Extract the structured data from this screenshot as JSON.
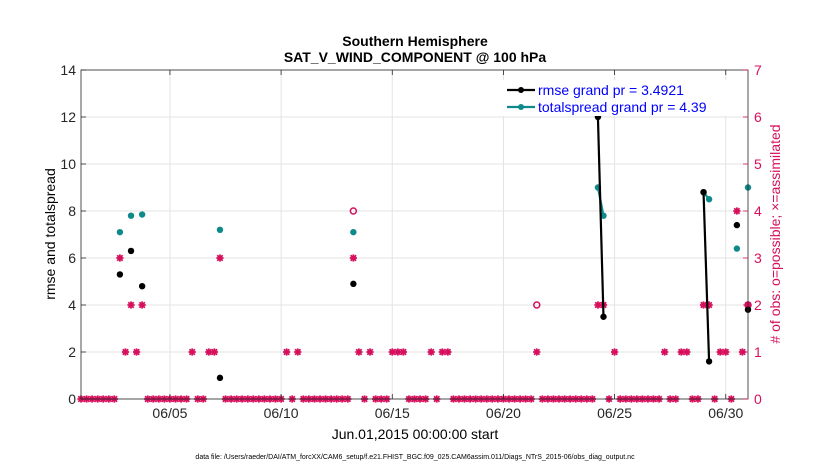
{
  "chart_data": {
    "type": "line",
    "title_line1": "Southern Hemisphere",
    "title_line2": "SAT_V_WIND_COMPONENT @ 100 hPa",
    "xlabel": "Jun.01,2015 00:00:00 start",
    "ylabel": "rmse and totalspread",
    "ylabel_right": "# of obs: o=possible; ×=assimilated",
    "footnote": "data file: /Users/raeder/DAI/ATM_forcXX/CAM6_setup/f.e21.FHIST_BGC.f09_025.CAM6assim.011/Diags_NTrS_2015-06/obs_diag_output.nc",
    "xlim": [
      1,
      31
    ],
    "ylim": [
      0,
      14
    ],
    "ylim_right": [
      0,
      7
    ],
    "x_tick_labels": [
      {
        "x": 5,
        "label": "06/05"
      },
      {
        "x": 10,
        "label": "06/10"
      },
      {
        "x": 15,
        "label": "06/15"
      },
      {
        "x": 20,
        "label": "06/20"
      },
      {
        "x": 25,
        "label": "06/25"
      },
      {
        "x": 30,
        "label": "06/30"
      }
    ],
    "y_ticks": [
      0,
      2,
      4,
      6,
      8,
      10,
      12,
      14
    ],
    "y_ticks_right": [
      0,
      1,
      2,
      3,
      4,
      5,
      6,
      7
    ],
    "colors": {
      "rmse": "#000000",
      "spread": "#0f8a8a",
      "obs": "#d6105c",
      "legend_text": "#0000ff",
      "grid": "#e3e3e3"
    },
    "legend": [
      {
        "label": "rmse grand pr = 3.4921",
        "series": "rmse"
      },
      {
        "label": "totalspread grand pr = 4.39",
        "series": "spread"
      }
    ],
    "series": [
      {
        "name": "rmse",
        "points": [
          [
            2.75,
            5.3
          ],
          [
            3.25,
            6.3
          ],
          [
            3.75,
            4.8
          ],
          [
            7.25,
            0.9
          ],
          [
            13.25,
            4.9
          ],
          [
            24.25,
            12.0
          ],
          [
            24.5,
            3.5
          ],
          [
            29.0,
            8.8
          ],
          [
            29.25,
            1.6
          ],
          [
            30.5,
            7.4
          ],
          [
            31.0,
            3.8
          ]
        ],
        "segments": [
          [
            [
              24.25,
              12.0
            ],
            [
              24.5,
              3.5
            ]
          ],
          [
            [
              29.0,
              8.8
            ],
            [
              29.25,
              1.6
            ]
          ]
        ]
      },
      {
        "name": "totalspread",
        "points": [
          [
            2.75,
            7.1
          ],
          [
            3.25,
            7.8
          ],
          [
            3.75,
            7.85
          ],
          [
            7.25,
            7.2
          ],
          [
            13.25,
            7.1
          ],
          [
            24.25,
            9.0
          ],
          [
            24.5,
            7.8
          ],
          [
            29.0,
            8.8
          ],
          [
            29.25,
            8.5
          ],
          [
            30.5,
            6.4
          ],
          [
            31.0,
            9.0
          ]
        ],
        "segments": [
          [
            [
              24.25,
              9.0
            ],
            [
              24.5,
              7.8
            ]
          ],
          [
            [
              29.0,
              8.8
            ],
            [
              29.25,
              8.5
            ]
          ]
        ]
      }
    ],
    "obs_possible": [
      [
        13.25,
        4
      ],
      [
        21.5,
        2
      ],
      [
        31.0,
        2
      ]
    ],
    "obs_assimilated": [
      [
        1.0,
        0
      ],
      [
        1.25,
        0
      ],
      [
        1.5,
        0
      ],
      [
        1.75,
        0
      ],
      [
        2.0,
        0
      ],
      [
        2.25,
        0
      ],
      [
        2.5,
        0
      ],
      [
        2.75,
        3
      ],
      [
        3.0,
        1
      ],
      [
        3.25,
        2
      ],
      [
        3.5,
        1
      ],
      [
        3.75,
        2
      ],
      [
        4.0,
        0
      ],
      [
        4.25,
        0
      ],
      [
        4.5,
        0
      ],
      [
        4.75,
        0
      ],
      [
        5.0,
        0
      ],
      [
        5.25,
        0
      ],
      [
        5.5,
        0
      ],
      [
        5.75,
        0
      ],
      [
        6.0,
        1
      ],
      [
        6.25,
        0
      ],
      [
        6.5,
        0
      ],
      [
        6.75,
        1
      ],
      [
        7.0,
        1
      ],
      [
        7.25,
        3
      ],
      [
        7.5,
        0
      ],
      [
        7.75,
        0
      ],
      [
        8.0,
        0
      ],
      [
        8.25,
        0
      ],
      [
        8.5,
        0
      ],
      [
        8.75,
        0
      ],
      [
        9.0,
        0
      ],
      [
        9.25,
        0
      ],
      [
        9.5,
        0
      ],
      [
        9.75,
        0
      ],
      [
        10.0,
        0
      ],
      [
        10.25,
        1
      ],
      [
        10.5,
        0
      ],
      [
        10.75,
        1
      ],
      [
        11.0,
        0
      ],
      [
        11.25,
        0
      ],
      [
        11.5,
        0
      ],
      [
        11.75,
        0
      ],
      [
        12.0,
        0
      ],
      [
        12.25,
        0
      ],
      [
        12.5,
        0
      ],
      [
        12.75,
        0
      ],
      [
        13.0,
        0
      ],
      [
        13.25,
        3
      ],
      [
        13.5,
        1
      ],
      [
        13.75,
        0
      ],
      [
        14.0,
        1
      ],
      [
        14.25,
        0
      ],
      [
        14.5,
        0
      ],
      [
        14.75,
        0
      ],
      [
        15.0,
        1
      ],
      [
        15.25,
        1
      ],
      [
        15.5,
        1
      ],
      [
        15.75,
        0
      ],
      [
        16.0,
        0
      ],
      [
        16.25,
        0
      ],
      [
        16.5,
        0
      ],
      [
        16.75,
        1
      ],
      [
        17.0,
        0
      ],
      [
        17.25,
        1
      ],
      [
        17.5,
        1
      ],
      [
        17.75,
        0
      ],
      [
        18.0,
        0
      ],
      [
        18.25,
        0
      ],
      [
        18.5,
        0
      ],
      [
        18.75,
        0
      ],
      [
        19.0,
        0
      ],
      [
        19.25,
        0
      ],
      [
        19.5,
        0
      ],
      [
        19.75,
        0
      ],
      [
        20.0,
        0
      ],
      [
        20.25,
        0
      ],
      [
        20.5,
        0
      ],
      [
        20.75,
        0
      ],
      [
        21.0,
        0
      ],
      [
        21.25,
        0
      ],
      [
        21.5,
        1
      ],
      [
        21.75,
        0
      ],
      [
        22.0,
        0
      ],
      [
        22.25,
        0
      ],
      [
        22.5,
        0
      ],
      [
        22.75,
        0
      ],
      [
        23.0,
        0
      ],
      [
        23.25,
        0
      ],
      [
        23.5,
        0
      ],
      [
        23.75,
        0
      ],
      [
        24.0,
        0
      ],
      [
        24.25,
        2
      ],
      [
        24.5,
        2
      ],
      [
        24.75,
        0
      ],
      [
        25.0,
        1
      ],
      [
        25.25,
        0
      ],
      [
        25.5,
        0
      ],
      [
        25.75,
        0
      ],
      [
        26.0,
        0
      ],
      [
        26.25,
        0
      ],
      [
        26.5,
        0
      ],
      [
        26.75,
        0
      ],
      [
        27.0,
        0
      ],
      [
        27.25,
        1
      ],
      [
        27.5,
        0
      ],
      [
        27.75,
        0
      ],
      [
        28.0,
        1
      ],
      [
        28.25,
        1
      ],
      [
        28.5,
        0
      ],
      [
        28.75,
        0
      ],
      [
        29.0,
        2
      ],
      [
        29.25,
        2
      ],
      [
        29.5,
        0
      ],
      [
        29.75,
        1
      ],
      [
        30.0,
        1
      ],
      [
        30.25,
        0
      ],
      [
        30.5,
        4
      ],
      [
        30.75,
        1
      ],
      [
        31.0,
        2
      ]
    ]
  }
}
